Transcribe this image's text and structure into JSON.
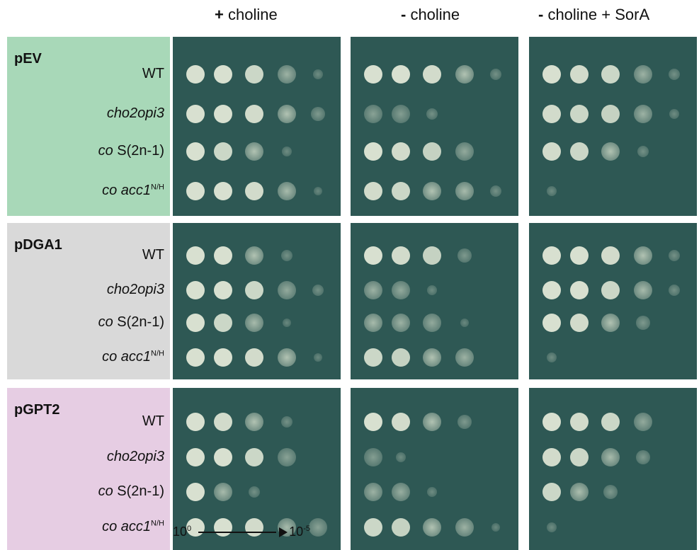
{
  "column_headers": [
    {
      "symbol": "+",
      "text": " choline"
    },
    {
      "symbol": "-",
      "text": " choline"
    },
    {
      "symbol": "-",
      "text": " choline + SorA"
    }
  ],
  "panels": [
    {
      "plasmid": "pEV",
      "label_color": "#a8d8b8",
      "strains": [
        {
          "italic": "",
          "plain": "WT",
          "sup": ""
        },
        {
          "italic": "cho2opi3",
          "plain": "",
          "sup": ""
        },
        {
          "italic": "co",
          "plain": " S(2n-1)",
          "sup": ""
        },
        {
          "italic": "co acc1",
          "plain": "",
          "sup": "N/H"
        }
      ]
    },
    {
      "plasmid": "pDGA1",
      "label_color": "#d9d9d9",
      "strains": [
        {
          "italic": "",
          "plain": "WT",
          "sup": ""
        },
        {
          "italic": "cho2opi3",
          "plain": "",
          "sup": ""
        },
        {
          "italic": "co",
          "plain": " S(2n-1)",
          "sup": ""
        },
        {
          "italic": "co acc1",
          "plain": "",
          "sup": "N/H"
        }
      ]
    },
    {
      "plasmid": "pGPT2",
      "label_color": "#e6cde3",
      "strains": [
        {
          "italic": "",
          "plain": "WT",
          "sup": ""
        },
        {
          "italic": "cho2opi3",
          "plain": "",
          "sup": ""
        },
        {
          "italic": "co",
          "plain": " S(2n-1)",
          "sup": ""
        },
        {
          "italic": "co acc1",
          "plain": "",
          "sup": "N/H"
        }
      ]
    }
  ],
  "growth": [
    [
      [
        [
          1,
          1,
          0.9,
          0.6,
          0.15
        ],
        [
          1,
          1,
          0.95,
          0.8,
          0.3
        ],
        [
          1,
          0.9,
          0.8,
          0.15,
          0
        ],
        [
          1,
          1,
          0.95,
          0.7,
          0.1
        ]
      ],
      [
        [
          1,
          1,
          0.95,
          0.8,
          0.2
        ],
        [
          0.4,
          0.35,
          0.2,
          0,
          0
        ],
        [
          1,
          0.95,
          0.85,
          0.5,
          0
        ],
        [
          0.95,
          0.9,
          0.8,
          0.7,
          0.2
        ]
      ],
      [
        [
          1,
          0.95,
          0.9,
          0.6,
          0.2
        ],
        [
          0.95,
          0.9,
          0.85,
          0.6,
          0.15
        ],
        [
          0.95,
          0.9,
          0.8,
          0.2,
          0
        ],
        [
          0.15,
          0,
          0,
          0,
          0
        ]
      ]
    ],
    [
      [
        [
          1,
          1,
          0.8,
          0.2,
          0
        ],
        [
          1,
          1,
          0.9,
          0.5,
          0.2
        ],
        [
          1,
          0.9,
          0.7,
          0.1,
          0
        ],
        [
          1,
          1,
          0.95,
          0.8,
          0.1
        ]
      ],
      [
        [
          1,
          0.95,
          0.85,
          0.3,
          0
        ],
        [
          0.6,
          0.5,
          0.15,
          0,
          0
        ],
        [
          0.7,
          0.6,
          0.5,
          0.1,
          0
        ],
        [
          0.9,
          0.85,
          0.8,
          0.6,
          0
        ]
      ],
      [
        [
          1,
          1,
          0.95,
          0.8,
          0.2
        ],
        [
          1,
          1,
          0.9,
          0.7,
          0.2
        ],
        [
          1,
          0.95,
          0.8,
          0.3,
          0
        ],
        [
          0.15,
          0,
          0,
          0,
          0
        ]
      ]
    ],
    [
      [
        [
          1,
          0.95,
          0.8,
          0.2,
          0
        ],
        [
          1,
          1,
          0.9,
          0.4,
          0
        ],
        [
          1,
          0.7,
          0.2,
          0,
          0
        ],
        [
          1,
          1,
          0.95,
          0.7,
          0.4
        ]
      ],
      [
        [
          1,
          0.95,
          0.8,
          0.3,
          0
        ],
        [
          0.35,
          0.15,
          0,
          0,
          0
        ],
        [
          0.6,
          0.55,
          0.15,
          0,
          0
        ],
        [
          0.9,
          0.85,
          0.8,
          0.6,
          0.1
        ]
      ],
      [
        [
          1,
          0.95,
          0.9,
          0.5,
          0
        ],
        [
          0.95,
          0.9,
          0.7,
          0.3,
          0
        ],
        [
          0.9,
          0.75,
          0.3,
          0,
          0
        ],
        [
          0.15,
          0,
          0,
          0,
          0
        ]
      ]
    ]
  ],
  "scale": {
    "start_base": "10",
    "start_exp": "0",
    "end_base": "10",
    "end_exp": "-5"
  }
}
